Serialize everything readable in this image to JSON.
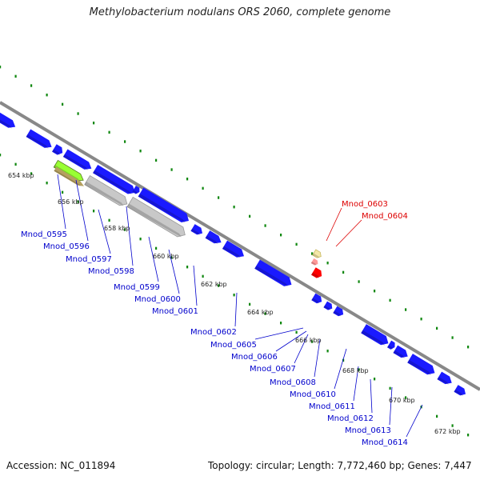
{
  "title": "Methylobacterium nodulans ORS 2060, complete genome",
  "footer": {
    "accession": "Accession: NC_011894",
    "summary": "Topology: circular; Length: 7,772,460 bp; Genes: 7,447"
  },
  "colors": {
    "forward_gene": "#1a1aff",
    "highlight_gene": "#ff0000",
    "pseudogene": "#c8c8c8",
    "rna_gene": "#99ff33",
    "backbone": "#888888",
    "tick_dots": "#118811",
    "gene_label": "#0000cc",
    "highlight_label": "#dd0000"
  },
  "kbp_ticks": [
    "654 kbp",
    "656 kbp",
    "658 kbp",
    "660 kbp",
    "662 kbp",
    "664 kbp",
    "666 kbp",
    "668 kbp",
    "670 kbp",
    "672 kbp"
  ],
  "gene_labels": [
    "Mnod_0595",
    "Mnod_0596",
    "Mnod_0597",
    "Mnod_0598",
    "Mnod_0599",
    "Mnod_0600",
    "Mnod_0601",
    "Mnod_0602",
    "Mnod_0605",
    "Mnod_0606",
    "Mnod_0607",
    "Mnod_0608",
    "Mnod_0610",
    "Mnod_0611",
    "Mnod_0612",
    "Mnod_0613",
    "Mnod_0614"
  ],
  "highlight_labels": [
    "Mnod_0603",
    "Mnod_0604"
  ]
}
